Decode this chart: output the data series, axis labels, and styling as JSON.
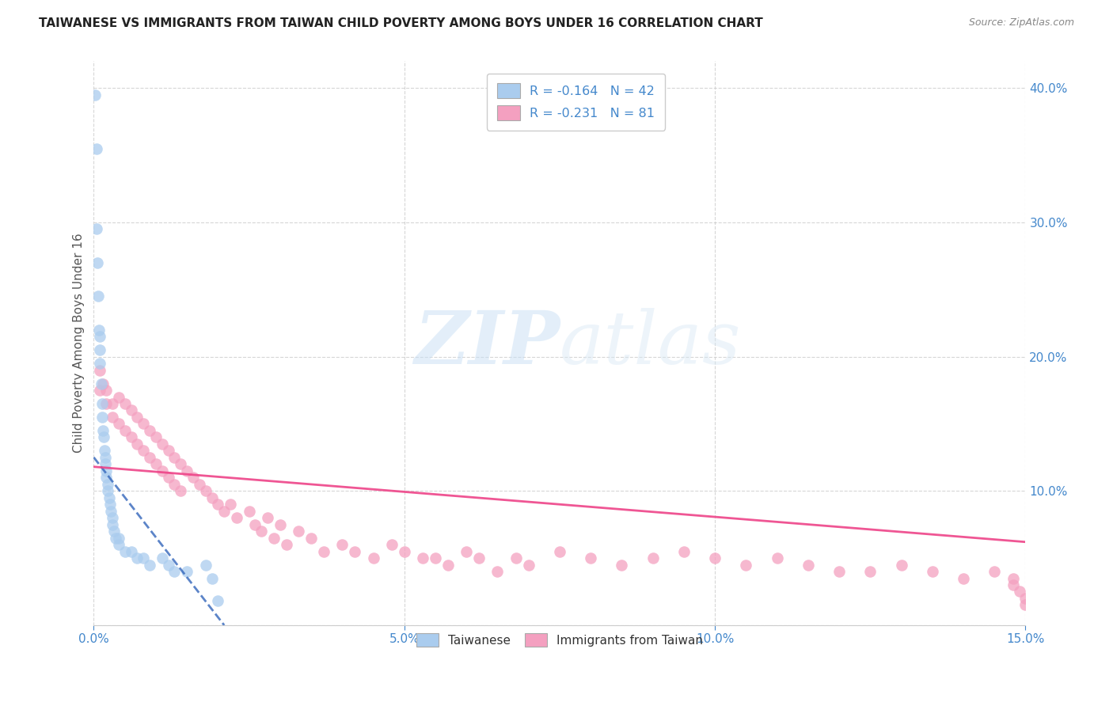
{
  "title": "TAIWANESE VS IMMIGRANTS FROM TAIWAN CHILD POVERTY AMONG BOYS UNDER 16 CORRELATION CHART",
  "source": "Source: ZipAtlas.com",
  "ylabel": "Child Poverty Among Boys Under 16",
  "xlim": [
    0,
    0.15
  ],
  "ylim": [
    0,
    0.42
  ],
  "xticks": [
    0.0,
    0.05,
    0.1,
    0.15
  ],
  "xtick_labels": [
    "0.0%",
    "5.0%",
    "10.0%",
    "15.0%"
  ],
  "yticks": [
    0.0,
    0.1,
    0.2,
    0.3,
    0.4
  ],
  "ytick_labels": [
    "",
    "10.0%",
    "20.0%",
    "30.0%",
    "40.0%"
  ],
  "taiwanese_R": -0.164,
  "taiwanese_N": 42,
  "immigrants_R": -0.231,
  "immigrants_N": 81,
  "taiwanese_color": "#aaccee",
  "immigrants_color": "#f4a0c0",
  "taiwanese_line_color": "#3366bb",
  "immigrants_line_color": "#ee4488",
  "tw_trendline_x": [
    0.0,
    0.021
  ],
  "tw_trendline_y": [
    0.125,
    0.0
  ],
  "im_trendline_x": [
    0.0,
    0.15
  ],
  "im_trendline_y": [
    0.118,
    0.062
  ],
  "taiwanese_x": [
    0.0002,
    0.0004,
    0.0005,
    0.0006,
    0.0007,
    0.0008,
    0.0009,
    0.001,
    0.001,
    0.0012,
    0.0013,
    0.0014,
    0.0015,
    0.0016,
    0.0017,
    0.0018,
    0.0019,
    0.002,
    0.002,
    0.0022,
    0.0023,
    0.0025,
    0.0026,
    0.0027,
    0.003,
    0.003,
    0.0032,
    0.0035,
    0.004,
    0.004,
    0.005,
    0.006,
    0.007,
    0.008,
    0.009,
    0.011,
    0.012,
    0.013,
    0.015,
    0.018,
    0.019,
    0.02
  ],
  "taiwanese_y": [
    0.395,
    0.355,
    0.295,
    0.27,
    0.245,
    0.22,
    0.215,
    0.205,
    0.195,
    0.18,
    0.165,
    0.155,
    0.145,
    0.14,
    0.13,
    0.125,
    0.12,
    0.115,
    0.11,
    0.105,
    0.1,
    0.095,
    0.09,
    0.085,
    0.08,
    0.075,
    0.07,
    0.065,
    0.065,
    0.06,
    0.055,
    0.055,
    0.05,
    0.05,
    0.045,
    0.05,
    0.045,
    0.04,
    0.04,
    0.045,
    0.035,
    0.018
  ],
  "immigrants_x": [
    0.001,
    0.001,
    0.0015,
    0.002,
    0.002,
    0.003,
    0.003,
    0.004,
    0.004,
    0.005,
    0.005,
    0.006,
    0.006,
    0.007,
    0.007,
    0.008,
    0.008,
    0.009,
    0.009,
    0.01,
    0.01,
    0.011,
    0.011,
    0.012,
    0.012,
    0.013,
    0.013,
    0.014,
    0.014,
    0.015,
    0.016,
    0.017,
    0.018,
    0.019,
    0.02,
    0.021,
    0.022,
    0.023,
    0.025,
    0.026,
    0.027,
    0.028,
    0.029,
    0.03,
    0.031,
    0.033,
    0.035,
    0.037,
    0.04,
    0.042,
    0.045,
    0.048,
    0.05,
    0.053,
    0.055,
    0.057,
    0.06,
    0.062,
    0.065,
    0.068,
    0.07,
    0.075,
    0.08,
    0.085,
    0.09,
    0.095,
    0.1,
    0.105,
    0.11,
    0.115,
    0.12,
    0.125,
    0.13,
    0.135,
    0.14,
    0.145,
    0.148,
    0.148,
    0.149,
    0.15,
    0.15
  ],
  "immigrants_y": [
    0.19,
    0.175,
    0.18,
    0.175,
    0.165,
    0.165,
    0.155,
    0.17,
    0.15,
    0.165,
    0.145,
    0.16,
    0.14,
    0.155,
    0.135,
    0.15,
    0.13,
    0.145,
    0.125,
    0.14,
    0.12,
    0.135,
    0.115,
    0.13,
    0.11,
    0.125,
    0.105,
    0.12,
    0.1,
    0.115,
    0.11,
    0.105,
    0.1,
    0.095,
    0.09,
    0.085,
    0.09,
    0.08,
    0.085,
    0.075,
    0.07,
    0.08,
    0.065,
    0.075,
    0.06,
    0.07,
    0.065,
    0.055,
    0.06,
    0.055,
    0.05,
    0.06,
    0.055,
    0.05,
    0.05,
    0.045,
    0.055,
    0.05,
    0.04,
    0.05,
    0.045,
    0.055,
    0.05,
    0.045,
    0.05,
    0.055,
    0.05,
    0.045,
    0.05,
    0.045,
    0.04,
    0.04,
    0.045,
    0.04,
    0.035,
    0.04,
    0.035,
    0.03,
    0.025,
    0.02,
    0.015
  ]
}
